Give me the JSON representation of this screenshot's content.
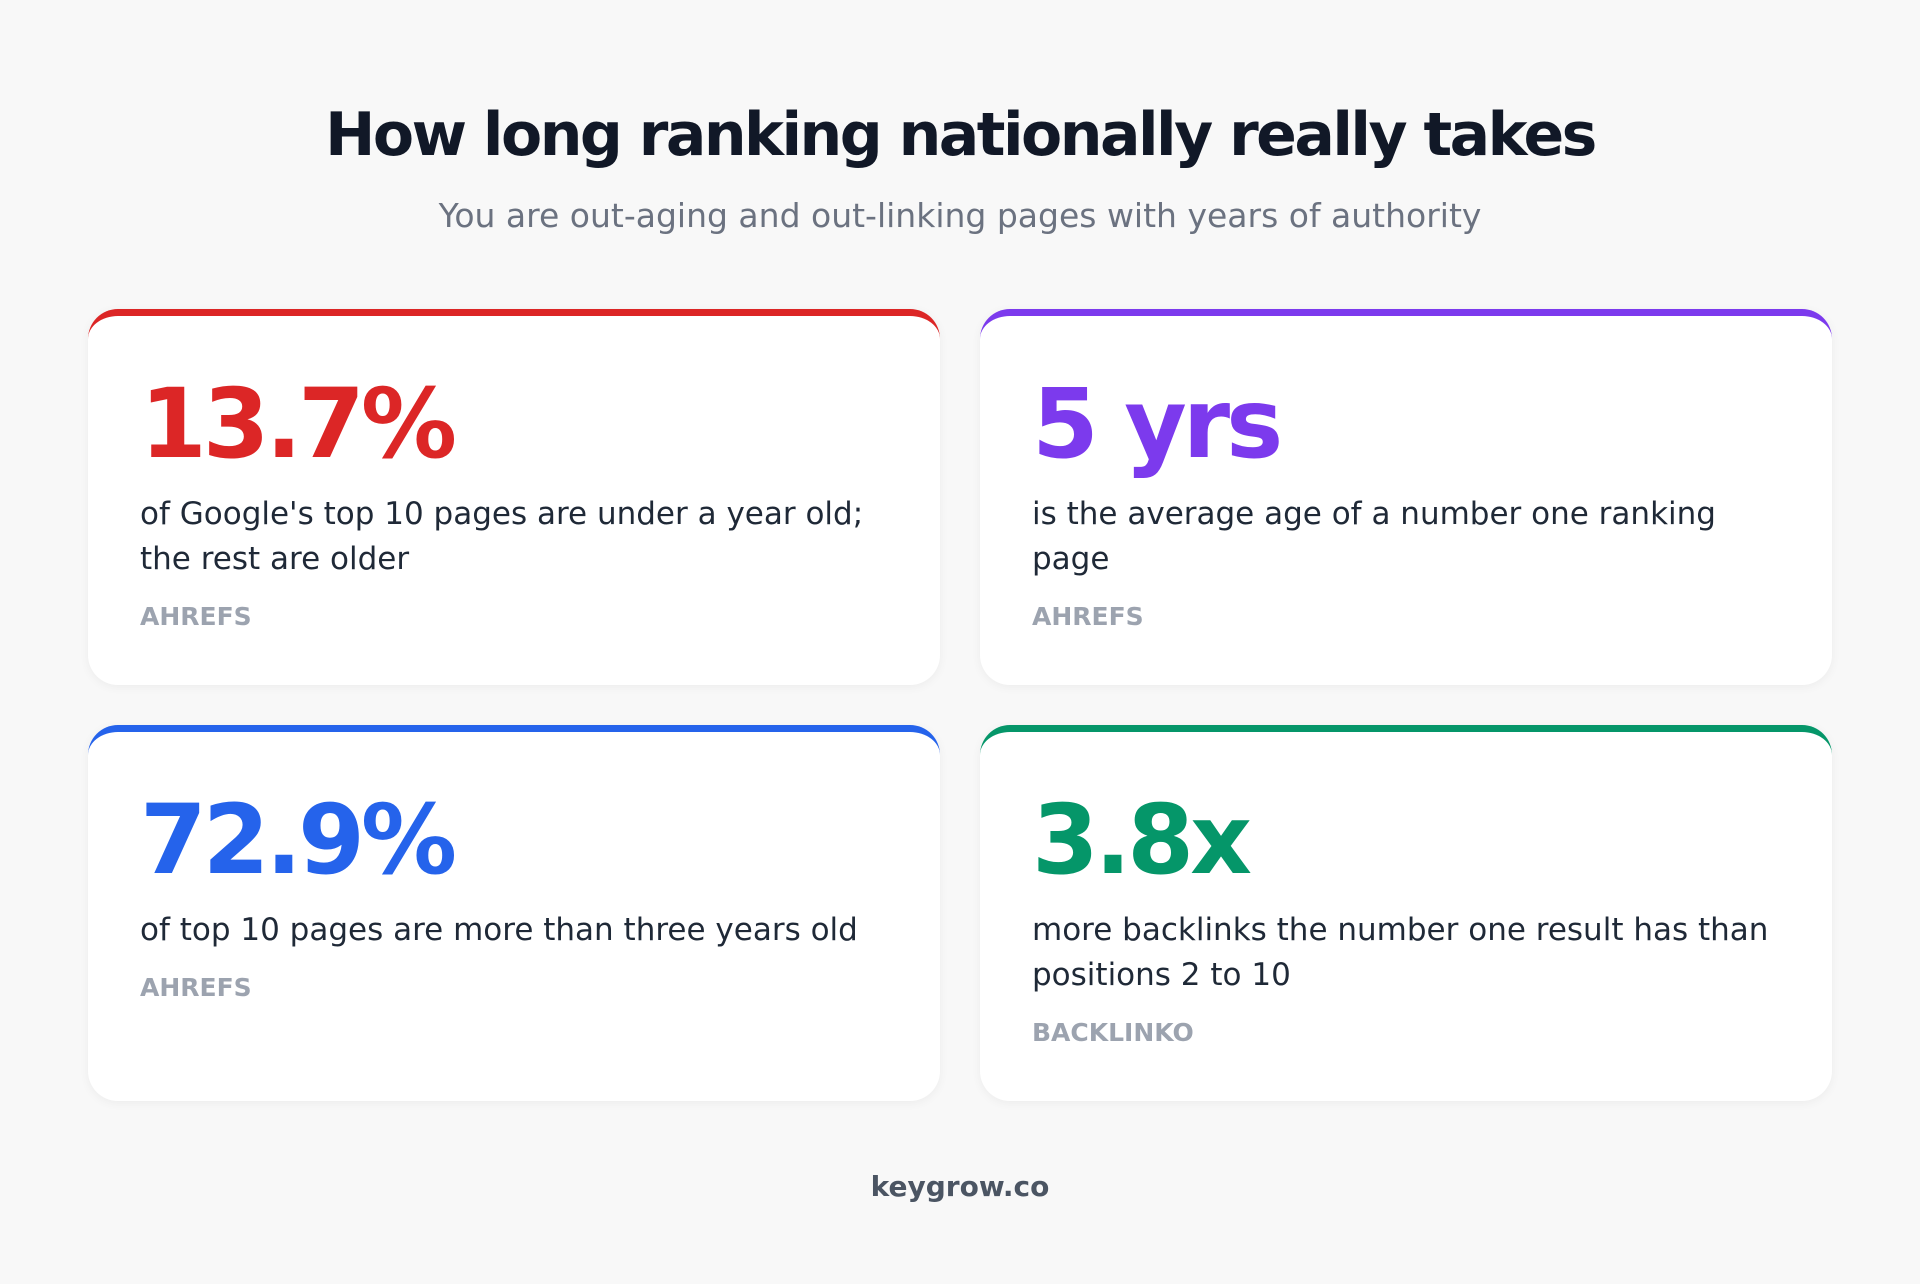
{
  "header": {
    "title": "How long ranking nationally really takes",
    "subtitle": "You are out-aging and out-linking pages with years of authority"
  },
  "cards": [
    {
      "stat": "13.7%",
      "description": "of Google's top 10 pages are under a year old; the rest are older",
      "source": "AHREFS",
      "color": "#dc2626"
    },
    {
      "stat": "5 yrs",
      "description": "is the average age of a number one ranking page",
      "source": "AHREFS",
      "color": "#7c3aed"
    },
    {
      "stat": "72.9%",
      "description": "of top 10 pages are more than three years old",
      "source": "AHREFS",
      "color": "#2563eb"
    },
    {
      "stat": "3.8x",
      "description": "more backlinks the number one result has than positions 2 to 10",
      "source": "BACKLINKO",
      "color": "#059669"
    }
  ],
  "footer": {
    "text": "keygrow.co"
  }
}
